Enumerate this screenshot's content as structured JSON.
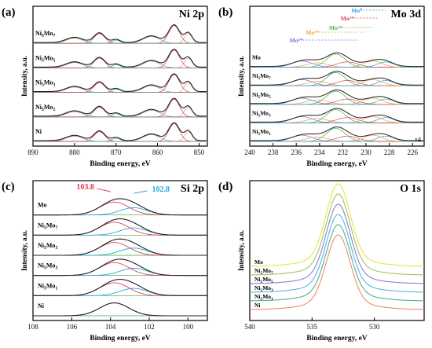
{
  "chart_data": [
    {
      "type": "line",
      "panel_label": "(a)",
      "title": "Ni 2p",
      "xlabel": "Binding energy, eV",
      "ylabel": "Intensity, a.u.",
      "xlim": [
        890,
        848
      ],
      "xticks": [
        890,
        880,
        870,
        860,
        850
      ],
      "series": [
        {
          "name": "Ni5Mo7",
          "offset": 4
        },
        {
          "name": "Ni5Mo5",
          "offset": 3
        },
        {
          "name": "Ni5Mo3",
          "offset": 2
        },
        {
          "name": "Ni5Mo1",
          "offset": 1
        },
        {
          "name": "Ni",
          "offset": 0
        }
      ],
      "peaks_eV": [
        852.6,
        856.0,
        861.5,
        870.0,
        874.0,
        880.0
      ],
      "peak_heights": [
        0.55,
        1.0,
        0.38,
        0.18,
        0.55,
        0.3
      ]
    },
    {
      "type": "line",
      "panel_label": "(b)",
      "title": "Mo 3d",
      "xlabel": "Binding energy, eV",
      "ylabel": "Intensity, a.u.",
      "xlim": [
        240,
        225
      ],
      "xticks": [
        240,
        238,
        236,
        234,
        232,
        230,
        228,
        226
      ],
      "annotations": [
        "Mo⁰",
        "Mo³⁺",
        "Mo⁴⁺",
        "Mo⁵⁺",
        "Mo⁶⁺",
        "×4"
      ],
      "series": [
        {
          "name": "Mo",
          "offset": 4
        },
        {
          "name": "Ni5Mo7",
          "offset": 3
        },
        {
          "name": "Ni5Mo5",
          "offset": 2
        },
        {
          "name": "Ni5Mo3",
          "offset": 1
        },
        {
          "name": "Ni5Mo1",
          "offset": 0
        }
      ]
    },
    {
      "type": "line",
      "panel_label": "(c)",
      "title": "Si 2p",
      "xlabel": "Binding energy, eV",
      "ylabel": "Intensity, a.u.",
      "xlim": [
        108,
        99
      ],
      "xticks": [
        108,
        106,
        104,
        102,
        100
      ],
      "annotations": [
        {
          "text": "103.8",
          "color": "#e8344f"
        },
        {
          "text": "102.8",
          "color": "#2aa5d8"
        }
      ],
      "series": [
        {
          "name": "Mo",
          "offset": 5
        },
        {
          "name": "Ni5Mo7",
          "offset": 4
        },
        {
          "name": "Ni5Mo5",
          "offset": 3
        },
        {
          "name": "Ni5Mo3",
          "offset": 2
        },
        {
          "name": "Ni5Mo1",
          "offset": 1
        },
        {
          "name": "Ni",
          "offset": 0
        }
      ]
    },
    {
      "type": "line",
      "panel_label": "(d)",
      "title": "O 1s",
      "xlabel": "Binding energy, eV",
      "ylabel": "Intensity, a.u.",
      "xlim": [
        540,
        526
      ],
      "xticks": [
        540,
        535,
        530
      ],
      "peak_eV": 532.9,
      "series": [
        {
          "name": "Mo",
          "color": "#e8e44a"
        },
        {
          "name": "Ni5Mo7",
          "color": "#9bc66a"
        },
        {
          "name": "Ni5Mo5",
          "color": "#8f7fd1"
        },
        {
          "name": "Ni5Mo3",
          "color": "#5ab7d8"
        },
        {
          "name": "Ni5Mo1",
          "color": "#4db19a"
        },
        {
          "name": "Ni",
          "color": "#f08a66"
        }
      ]
    }
  ]
}
